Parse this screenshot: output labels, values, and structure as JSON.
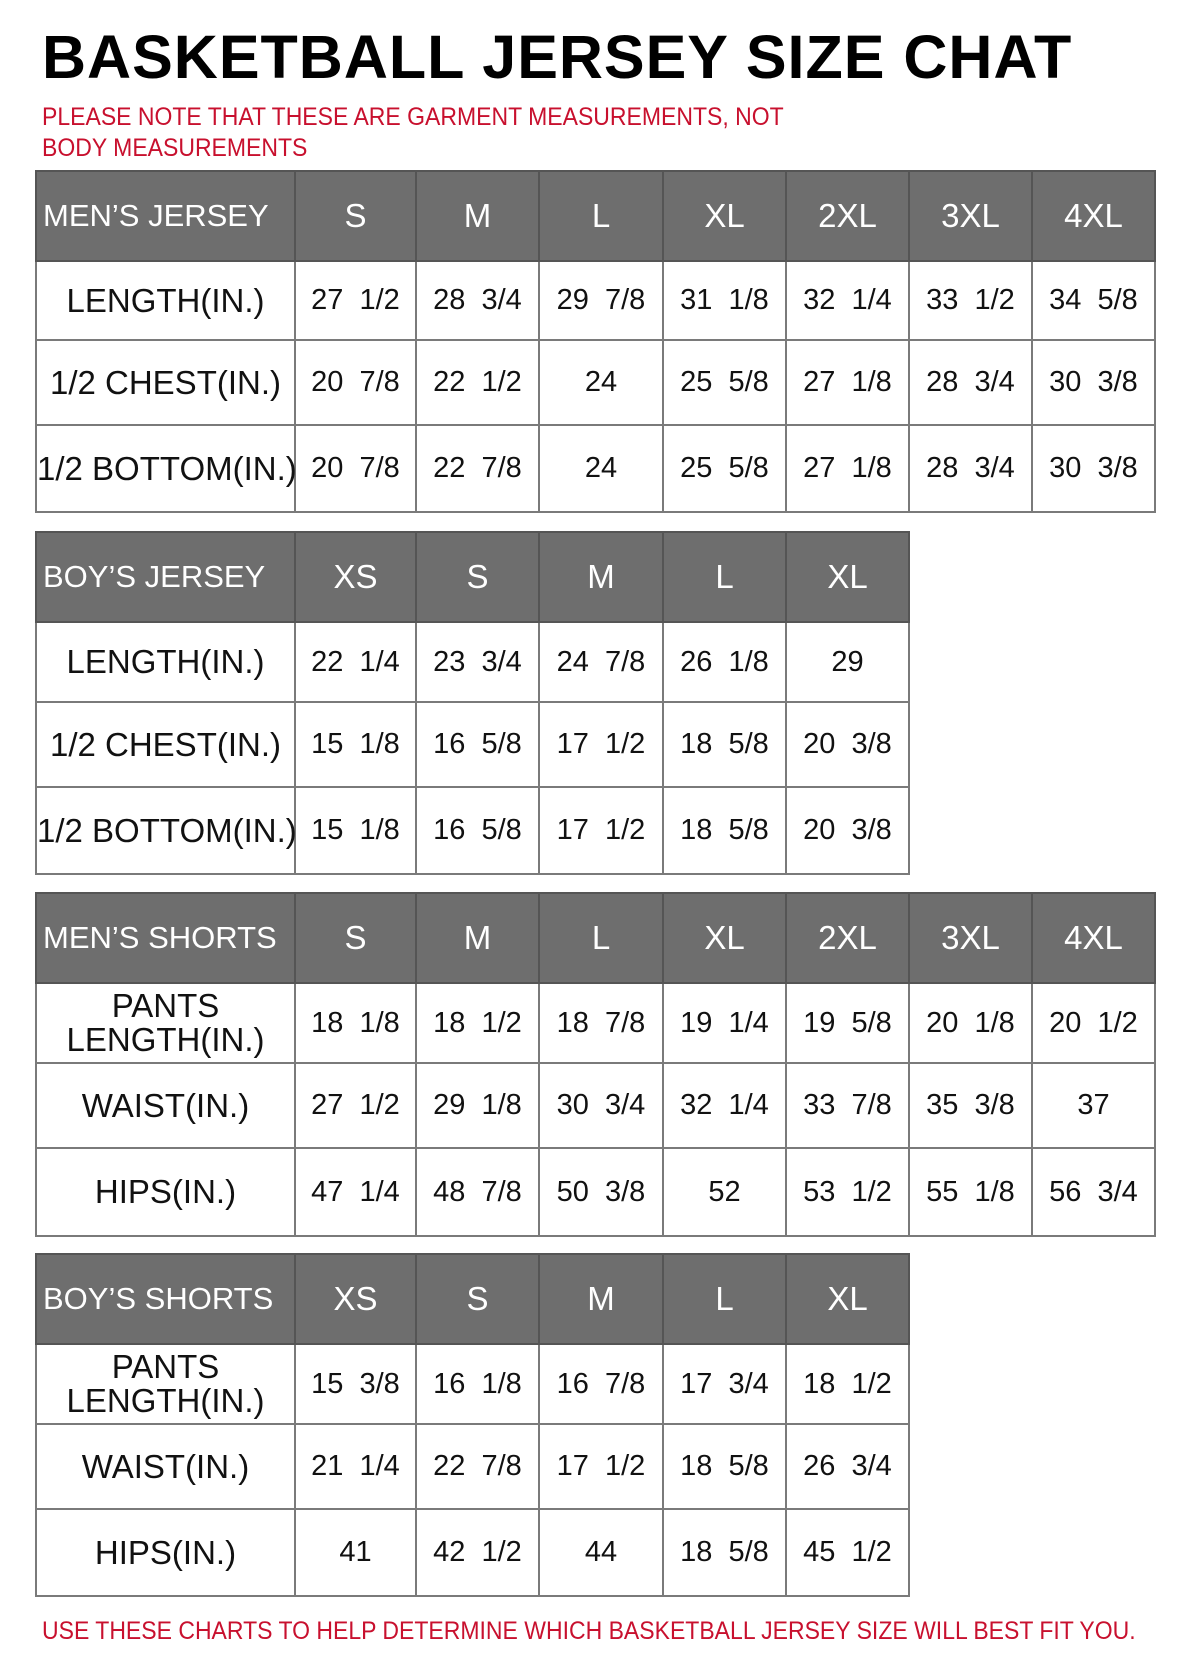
{
  "title": "BASKETBALL JERSEY SIZE CHAT",
  "note": "PLEASE NOTE THAT THESE ARE GARMENT MEASUREMENTS, NOT BODY MEASUREMENTS",
  "footer": "USE THESE CHARTS TO HELP DETERMINE WHICH BASKETBALL JERSEY SIZE WILL BEST FIT YOU.",
  "colors": {
    "header_bg": "#6e6e6e",
    "header_text": "#ffffff",
    "note_text": "#c8102e",
    "border": "#7a7a7a"
  },
  "tables": [
    {
      "label": "MEN’S JERSEY",
      "sizes": [
        "S",
        "M",
        "L",
        "XL",
        "2XL",
        "3XL",
        "4XL"
      ],
      "rows": [
        {
          "label": "LENGTH(IN.)",
          "values": [
            "27 1/2",
            "28 3/4",
            "29 7/8",
            "31 1/8",
            "32 1/4",
            "33 1/2",
            "34 5/8"
          ]
        },
        {
          "label": "1/2 CHEST(IN.)",
          "values": [
            "20 7/8",
            "22 1/2",
            "24",
            "25 5/8",
            "27 1/8",
            "28 3/4",
            "30 3/8"
          ]
        },
        {
          "label": "1/2 BOTTOM(IN.)",
          "values": [
            "20 7/8",
            "22 7/8",
            "24",
            "25 5/8",
            "27 1/8",
            "28 3/4",
            "30 3/8"
          ]
        }
      ]
    },
    {
      "label": "BOY’S JERSEY",
      "sizes": [
        "XS",
        "S",
        "M",
        "L",
        "XL"
      ],
      "rows": [
        {
          "label": "LENGTH(IN.)",
          "values": [
            "22 1/4",
            "23 3/4",
            "24 7/8",
            "26 1/8",
            "29"
          ]
        },
        {
          "label": "1/2 CHEST(IN.)",
          "values": [
            "15 1/8",
            "16 5/8",
            "17 1/2",
            "18 5/8",
            "20 3/8"
          ]
        },
        {
          "label": "1/2 BOTTOM(IN.)",
          "values": [
            "15 1/8",
            "16 5/8",
            "17 1/2",
            "18 5/8",
            "20 3/8"
          ]
        }
      ]
    },
    {
      "label": "MEN’S SHORTS",
      "sizes": [
        "S",
        "M",
        "L",
        "XL",
        "2XL",
        "3XL",
        "4XL"
      ],
      "rows": [
        {
          "label": "PANTS LENGTH(IN.)",
          "values": [
            "18 1/8",
            "18 1/2",
            "18 7/8",
            "19 1/4",
            "19 5/8",
            "20 1/8",
            "20 1/2"
          ]
        },
        {
          "label": "WAIST(IN.)",
          "values": [
            "27 1/2",
            "29 1/8",
            "30 3/4",
            "32 1/4",
            "33 7/8",
            "35 3/8",
            "37"
          ]
        },
        {
          "label": "HIPS(IN.)",
          "values": [
            "47 1/4",
            "48 7/8",
            "50 3/8",
            "52",
            "53 1/2",
            "55 1/8",
            "56 3/4"
          ]
        }
      ]
    },
    {
      "label": "BOY’S SHORTS",
      "sizes": [
        "XS",
        "S",
        "M",
        "L",
        "XL"
      ],
      "rows": [
        {
          "label": "PANTS LENGTH(IN.)",
          "values": [
            "15 3/8",
            "16 1/8",
            "16 7/8",
            "17 3/4",
            "18 1/2"
          ]
        },
        {
          "label": "WAIST(IN.)",
          "values": [
            "21 1/4",
            "22 7/8",
            "17 1/2",
            "18 5/8",
            "26 3/4"
          ]
        },
        {
          "label": "HIPS(IN.)",
          "values": [
            "41",
            "42 1/2",
            "44",
            "18 5/8",
            "45 1/2"
          ]
        }
      ]
    }
  ]
}
